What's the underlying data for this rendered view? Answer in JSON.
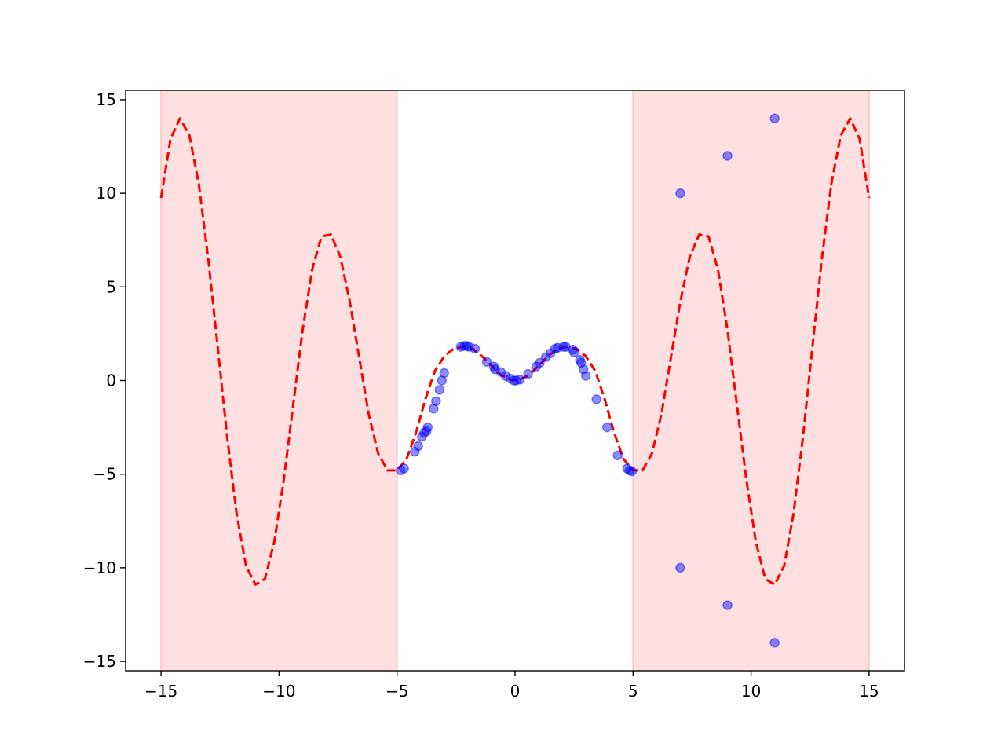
{
  "chart_data": {
    "type": "scatter",
    "title": "",
    "xlabel": "",
    "ylabel": "",
    "xlim": [
      -16.5,
      16.5
    ],
    "ylim": [
      -15.5,
      15.5
    ],
    "grid": false,
    "x_ticks": [
      -15,
      -10,
      -5,
      0,
      5,
      10,
      15
    ],
    "x_tick_labels": [
      "−15",
      "−10",
      "−5",
      "0",
      "5",
      "10",
      "15"
    ],
    "y_ticks": [
      -15,
      -10,
      -5,
      0,
      5,
      10,
      15
    ],
    "y_tick_labels": [
      "−15",
      "−10",
      "−5",
      "0",
      "5",
      "10",
      "15"
    ],
    "shaded_regions": [
      {
        "x_start": -15,
        "x_end": -5,
        "color": "#ffe0e0"
      },
      {
        "x_start": 5,
        "x_end": 15,
        "color": "#ffe0e0"
      }
    ],
    "series": [
      {
        "type": "line",
        "style": "dashed",
        "color": "#ff0000",
        "x": [
          -15.0,
          -14.6,
          -14.2,
          -13.8,
          -13.4,
          -13.0,
          -12.6,
          -12.2,
          -11.8,
          -11.4,
          -11.0,
          -10.6,
          -10.2,
          -9.8,
          -9.4,
          -9.0,
          -8.6,
          -8.2,
          -7.8,
          -7.4,
          -7.0,
          -6.6,
          -6.2,
          -5.8,
          -5.4,
          -5.0,
          -4.6,
          -4.2,
          -3.8,
          -3.4,
          -3.0,
          -2.6,
          -2.2,
          -1.8,
          -1.4,
          -1.0,
          -0.6,
          -0.2,
          0.2,
          0.6,
          1.0,
          1.4,
          1.8,
          2.2,
          2.6,
          3.0,
          3.4,
          3.8,
          4.2,
          4.6,
          5.0,
          5.4,
          5.8,
          6.2,
          6.6,
          7.0,
          7.4,
          7.8,
          8.2,
          8.6,
          9.0,
          9.4,
          9.8,
          10.2,
          10.6,
          11.0,
          11.4,
          11.8,
          12.2,
          12.6,
          13.0,
          13.4,
          13.8,
          14.2,
          14.6,
          15.0
        ],
        "y": [
          9.75,
          12.9,
          14.0,
          13.1,
          10.5,
          6.5,
          1.8,
          -3.0,
          -7.1,
          -9.9,
          -10.9,
          -10.6,
          -8.6,
          -5.3,
          -1.3,
          2.7,
          5.9,
          7.7,
          7.8,
          6.6,
          4.2,
          1.2,
          -1.8,
          -3.9,
          -4.8,
          -4.8,
          -4.2,
          -2.8,
          -1.0,
          0.5,
          1.3,
          1.7,
          1.8,
          1.7,
          1.3,
          0.8,
          0.3,
          0.04,
          0.04,
          0.3,
          0.8,
          1.3,
          1.7,
          1.8,
          1.7,
          1.3,
          0.5,
          -1.0,
          -2.8,
          -4.2,
          -4.8,
          -4.8,
          -3.9,
          -1.8,
          1.2,
          4.2,
          6.6,
          7.8,
          7.7,
          5.9,
          2.7,
          -1.3,
          -5.3,
          -8.6,
          -10.6,
          -10.9,
          -9.9,
          -7.1,
          -3.0,
          1.8,
          6.5,
          10.5,
          13.1,
          14.0,
          12.9,
          9.75
        ]
      },
      {
        "type": "scatter",
        "color": "#0000ff",
        "alpha": 0.45,
        "x": [
          -4.85,
          -4.7,
          -4.25,
          -4.1,
          -3.95,
          -3.85,
          -3.75,
          -3.7,
          -3.45,
          -3.35,
          -3.2,
          -3.1,
          -3.0,
          -2.3,
          -2.15,
          -2.05,
          -1.95,
          -1.7,
          -1.2,
          -0.9,
          -0.85,
          -0.6,
          -0.4,
          -0.2,
          -0.05,
          0.05,
          0.2,
          0.55,
          0.9,
          1.05,
          1.3,
          1.5,
          1.7,
          1.8,
          2.05,
          2.15,
          2.45,
          2.5,
          2.75,
          2.8,
          2.9,
          3.0,
          3.45,
          3.9,
          4.35,
          4.75,
          4.85,
          4.95,
          7.0,
          9.0,
          11.0,
          7.0,
          9.0,
          11.0
        ],
        "y": [
          -4.8,
          -4.7,
          -3.8,
          -3.5,
          -3.0,
          -2.8,
          -2.7,
          -2.5,
          -1.5,
          -1.1,
          -0.5,
          0.0,
          0.4,
          1.8,
          1.85,
          1.85,
          1.8,
          1.7,
          1.0,
          0.75,
          0.6,
          0.45,
          0.25,
          0.1,
          0.0,
          0.0,
          0.05,
          0.35,
          0.75,
          0.95,
          1.25,
          1.45,
          1.7,
          1.75,
          1.8,
          1.8,
          1.65,
          1.5,
          1.1,
          0.95,
          0.6,
          0.25,
          -1.0,
          -2.5,
          -4.0,
          -4.7,
          -4.8,
          -4.85,
          10.0,
          12.0,
          14.0,
          -10.0,
          -12.0,
          -14.0
        ]
      }
    ]
  }
}
